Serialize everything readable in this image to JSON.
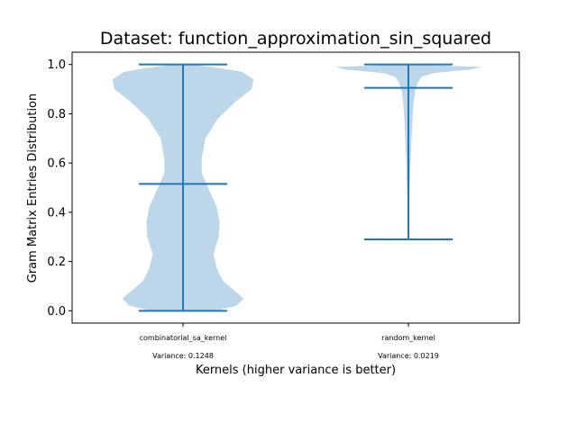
{
  "chart_data": {
    "type": "violin",
    "title": "Dataset: function_approximation_sin_squared",
    "xlabel": "Kernels (higher variance is better)",
    "ylabel": "Gram Matrix Entries Distribution",
    "ylim": [
      -0.05,
      1.05
    ],
    "yticks": [
      "0.0",
      "0.2",
      "0.4",
      "0.6",
      "0.8",
      "1.0"
    ],
    "colors": {
      "body": "#bcd6ea",
      "lines": "#1f77b4"
    },
    "series": [
      {
        "label": "combinatorial_sa_kernel",
        "variance_text": "Variance: 0.1248",
        "min": 0.0,
        "max": 1.0,
        "median": 0.515,
        "profile": [
          [
            0.0,
            0.36
          ],
          [
            0.02,
            0.6
          ],
          [
            0.05,
            0.68
          ],
          [
            0.08,
            0.58
          ],
          [
            0.12,
            0.45
          ],
          [
            0.17,
            0.38
          ],
          [
            0.23,
            0.34
          ],
          [
            0.3,
            0.4
          ],
          [
            0.36,
            0.41
          ],
          [
            0.42,
            0.38
          ],
          [
            0.5,
            0.28
          ],
          [
            0.56,
            0.21
          ],
          [
            0.62,
            0.21
          ],
          [
            0.7,
            0.25
          ],
          [
            0.78,
            0.39
          ],
          [
            0.85,
            0.59
          ],
          [
            0.9,
            0.77
          ],
          [
            0.94,
            0.79
          ],
          [
            0.97,
            0.66
          ],
          [
            0.985,
            0.42
          ],
          [
            0.995,
            0.22
          ],
          [
            1.0,
            0.15
          ]
        ]
      },
      {
        "label": "random_kernel",
        "variance_text": "Variance: 0.0219",
        "min": 0.29,
        "max": 1.0,
        "median": 0.905,
        "profile": [
          [
            0.29,
            0.0
          ],
          [
            0.38,
            0.005
          ],
          [
            0.45,
            0.01
          ],
          [
            0.5,
            0.015
          ],
          [
            0.56,
            0.02
          ],
          [
            0.62,
            0.025
          ],
          [
            0.7,
            0.035
          ],
          [
            0.78,
            0.045
          ],
          [
            0.85,
            0.06
          ],
          [
            0.9,
            0.08
          ],
          [
            0.93,
            0.11
          ],
          [
            0.95,
            0.15
          ],
          [
            0.965,
            0.28
          ],
          [
            0.98,
            0.7
          ],
          [
            0.99,
            0.82
          ],
          [
            0.995,
            0.45
          ],
          [
            1.0,
            0.15
          ]
        ]
      }
    ]
  }
}
